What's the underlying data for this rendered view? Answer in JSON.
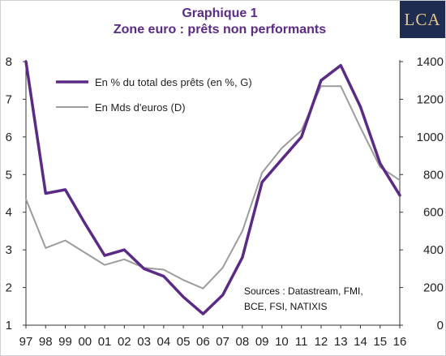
{
  "header": {
    "title": "Graphique 1",
    "subtitle": "Zone euro : prêts non performants",
    "logo_text": "LCA"
  },
  "colors": {
    "primary_series": "#5b2a86",
    "secondary_series": "#9c9c9c",
    "title": "#5b2a86",
    "logo_bg": "#1f2c52",
    "logo_text": "#e2c98a"
  },
  "chart_data": {
    "type": "line",
    "title": "Graphique 1",
    "subtitle": "Zone euro : prêts non performants",
    "categories": [
      "97",
      "98",
      "99",
      "00",
      "01",
      "02",
      "03",
      "04",
      "05",
      "06",
      "07",
      "08",
      "09",
      "10",
      "11",
      "12",
      "13",
      "14",
      "15",
      "16"
    ],
    "series": [
      {
        "name": "En % du total des prêts (en %, G)",
        "axis": "left",
        "color": "#5b2a86",
        "values": [
          8.0,
          4.5,
          4.6,
          3.7,
          2.85,
          3.0,
          2.5,
          2.3,
          1.75,
          1.3,
          1.8,
          2.8,
          4.8,
          5.4,
          6.0,
          7.5,
          7.9,
          6.8,
          5.3,
          4.45
        ]
      },
      {
        "name": "En Mds d'euros (D)",
        "axis": "right",
        "color": "#9c9c9c",
        "values": [
          670,
          410,
          450,
          385,
          320,
          350,
          305,
          295,
          240,
          195,
          305,
          500,
          810,
          940,
          1035,
          1270,
          1270,
          1050,
          840,
          770
        ]
      }
    ],
    "left_axis": {
      "ylim": [
        1,
        8
      ],
      "ticks": [
        "1",
        "2",
        "3",
        "4",
        "5",
        "6",
        "7",
        "8"
      ]
    },
    "right_axis": {
      "ylim": [
        0,
        1400
      ],
      "ticks": [
        "0",
        "200",
        "400",
        "600",
        "800",
        "1000",
        "1200",
        "1400"
      ]
    },
    "grid": false,
    "legend": {
      "position": "top-left",
      "entries": [
        "En % du total des prêts (en %, G)",
        "En Mds d'euros (D)"
      ]
    },
    "annotations": [
      {
        "lines": [
          "Sources : Datastream, FMI,",
          "BCE, FSI, NATIXIS"
        ]
      }
    ]
  }
}
